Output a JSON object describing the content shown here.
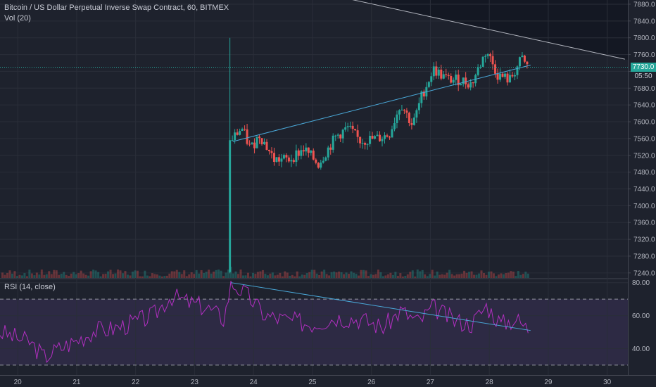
{
  "header": {
    "symbol_title": "Bitcoin / US Dollar Perpetual Inverse Swap Contract, 60, BITMEX",
    "volume_label": "Vol (20)",
    "rsi_label": "RSI (14, close)"
  },
  "last_price": {
    "label": "7730.0",
    "countdown": "05:50",
    "color": "#26a69a"
  },
  "colors": {
    "up": "#26a69a",
    "down": "#ef5350",
    "rsi": "#b12fc0",
    "trend": "#4aa8d8",
    "background": "#1e222d"
  },
  "chart_data": [
    {
      "type": "candlestick",
      "title": "Bitcoin / US Dollar Perpetual Inverse Swap Contract, 60, BITMEX",
      "x_tick_labels": [
        "20",
        "21",
        "22",
        "23",
        "24",
        "25",
        "26",
        "27",
        "28",
        "29",
        "30"
      ],
      "y_tick_labels": [
        "7240.0",
        "7280.0",
        "7320.0",
        "7360.0",
        "7400.0",
        "7440.0",
        "7480.0",
        "7520.0",
        "7560.0",
        "7600.0",
        "7640.0",
        "7680.0",
        "7720.0",
        "7760.0",
        "7800.0",
        "7840.0",
        "7880.0"
      ],
      "ylim": [
        7228,
        7890
      ],
      "xlim": [
        19.7,
        30.35
      ],
      "grid": true,
      "jump": {
        "x": 23.6,
        "from": 7242,
        "to": 7556
      },
      "anchors": [
        {
          "x": 23.62,
          "price": 7556
        },
        {
          "x": 23.8,
          "price": 7585
        },
        {
          "x": 23.95,
          "price": 7535
        },
        {
          "x": 24.1,
          "price": 7570
        },
        {
          "x": 24.35,
          "price": 7510
        },
        {
          "x": 24.6,
          "price": 7510
        },
        {
          "x": 24.85,
          "price": 7535
        },
        {
          "x": 25.1,
          "price": 7500
        },
        {
          "x": 25.4,
          "price": 7565
        },
        {
          "x": 25.6,
          "price": 7585
        },
        {
          "x": 25.8,
          "price": 7555
        },
        {
          "x": 26.1,
          "price": 7560
        },
        {
          "x": 26.3,
          "price": 7570
        },
        {
          "x": 26.5,
          "price": 7645
        },
        {
          "x": 26.7,
          "price": 7590
        },
        {
          "x": 26.85,
          "price": 7660
        },
        {
          "x": 27.05,
          "price": 7725
        },
        {
          "x": 27.3,
          "price": 7700
        },
        {
          "x": 27.5,
          "price": 7700
        },
        {
          "x": 27.7,
          "price": 7690
        },
        {
          "x": 27.95,
          "price": 7770
        },
        {
          "x": 28.15,
          "price": 7710
        },
        {
          "x": 28.35,
          "price": 7700
        },
        {
          "x": 28.55,
          "price": 7750
        },
        {
          "x": 28.65,
          "price": 7730
        }
      ],
      "trendlines": [
        {
          "from": {
            "x": 23.65,
            "price": 7553
          },
          "to": {
            "x": 28.7,
            "price": 7735
          },
          "color": "#4aa8d8"
        },
        {
          "from": {
            "x": 25.05,
            "price": 7910
          },
          "to": {
            "x": 30.3,
            "price": 7749
          },
          "color": "#b2b5be"
        }
      ],
      "last_price_line": 7730
    },
    {
      "type": "line",
      "title": "RSI (14, close)",
      "y_tick_labels": [
        "40.00",
        "60.00",
        "80.00"
      ],
      "ylim": [
        24,
        82
      ],
      "bands": [
        30,
        70
      ],
      "anchors": [
        {
          "x": 19.7,
          "rsi": 50
        },
        {
          "x": 20.2,
          "rsi": 44
        },
        {
          "x": 20.45,
          "rsi": 35
        },
        {
          "x": 20.7,
          "rsi": 40
        },
        {
          "x": 21.0,
          "rsi": 45
        },
        {
          "x": 21.3,
          "rsi": 51
        },
        {
          "x": 21.6,
          "rsi": 52
        },
        {
          "x": 21.9,
          "rsi": 55
        },
        {
          "x": 22.3,
          "rsi": 60
        },
        {
          "x": 22.6,
          "rsi": 72
        },
        {
          "x": 22.9,
          "rsi": 68
        },
        {
          "x": 23.2,
          "rsi": 65
        },
        {
          "x": 23.5,
          "rsi": 58
        },
        {
          "x": 23.62,
          "rsi": 80
        },
        {
          "x": 23.9,
          "rsi": 72
        },
        {
          "x": 24.2,
          "rsi": 60
        },
        {
          "x": 24.6,
          "rsi": 57
        },
        {
          "x": 25.0,
          "rsi": 55
        },
        {
          "x": 25.4,
          "rsi": 59
        },
        {
          "x": 25.8,
          "rsi": 58
        },
        {
          "x": 26.2,
          "rsi": 53
        },
        {
          "x": 26.5,
          "rsi": 63
        },
        {
          "x": 26.8,
          "rsi": 56
        },
        {
          "x": 27.05,
          "rsi": 65
        },
        {
          "x": 27.4,
          "rsi": 57
        },
        {
          "x": 27.7,
          "rsi": 55
        },
        {
          "x": 27.95,
          "rsi": 66
        },
        {
          "x": 28.2,
          "rsi": 55
        },
        {
          "x": 28.45,
          "rsi": 58
        },
        {
          "x": 28.65,
          "rsi": 52
        }
      ],
      "trendline": {
        "from": {
          "x": 23.62,
          "rsi": 80
        },
        "to": {
          "x": 28.7,
          "rsi": 51
        },
        "color": "#4aa8d8"
      }
    }
  ]
}
